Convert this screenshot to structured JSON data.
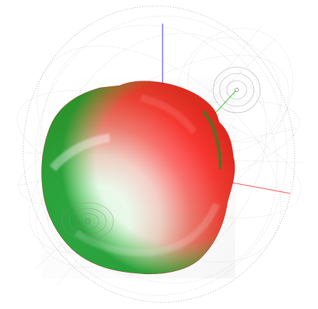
{
  "scene": {
    "background": "#ffffff",
    "object_colors": {
      "primary": "#ff2b2b",
      "highlight": "#ffffff",
      "edge_green": "#1bb33a",
      "guide_gray": "#9a9a9a"
    },
    "axes": {
      "x_color": "#ff4a4a",
      "y_color": "#2c2cff",
      "z_color": "#37c437"
    }
  }
}
